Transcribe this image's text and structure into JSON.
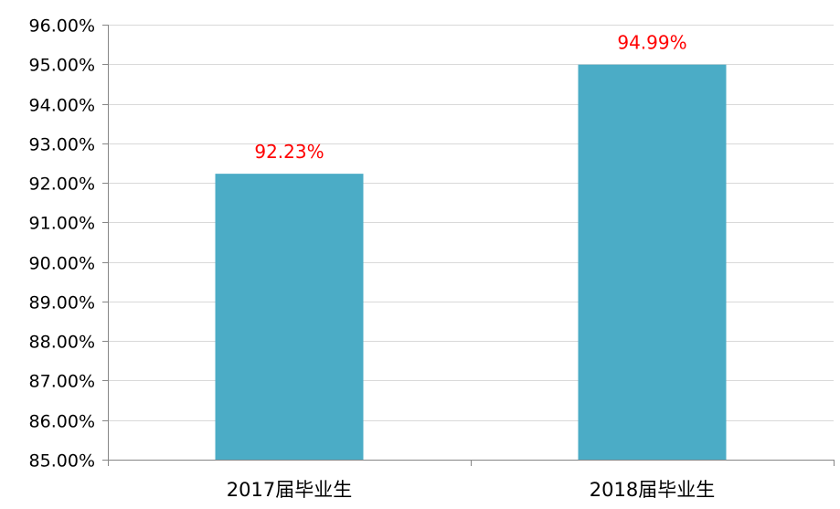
{
  "chart_data": {
    "type": "bar",
    "categories": [
      "2017届毕业生",
      "2018届毕业生"
    ],
    "values": [
      92.23,
      94.99
    ],
    "data_labels": [
      "92.23%",
      "94.99%"
    ],
    "y_ticks": [
      "85.00%",
      "86.00%",
      "87.00%",
      "88.00%",
      "89.00%",
      "90.00%",
      "91.00%",
      "92.00%",
      "93.00%",
      "94.00%",
      "95.00%",
      "96.00%"
    ],
    "ylim": [
      85,
      96
    ],
    "ytick_step": 1,
    "title": "",
    "xlabel": "",
    "ylabel": "",
    "grid": true,
    "legend": "none",
    "colors": {
      "bar": "#4bacc6",
      "data_label": "#ff0000",
      "grid": "#d9d9d9",
      "axis": "#868686",
      "text": "#000000"
    }
  }
}
